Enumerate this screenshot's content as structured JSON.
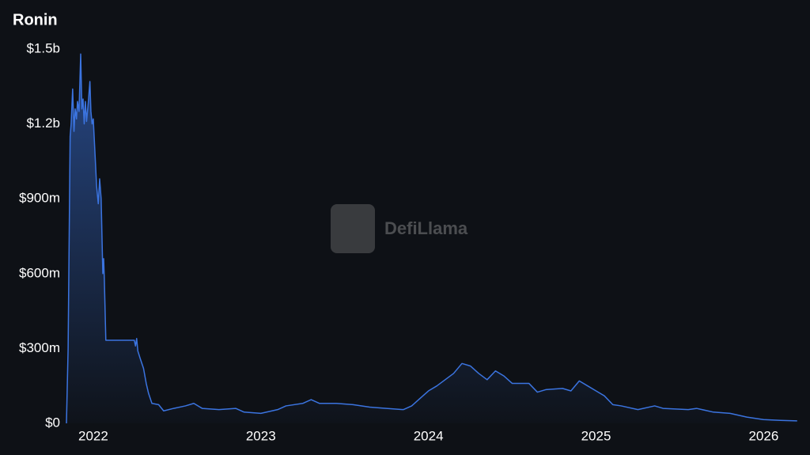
{
  "chart_data": {
    "type": "area",
    "title": "Ronin",
    "watermark": "DefiLlama",
    "color": "#3b74e0",
    "xlim": [
      2021.84,
      2026.22
    ],
    "xticks": [
      2022,
      2023,
      2024,
      2025,
      2026
    ],
    "ylim": [
      0,
      1500000000
    ],
    "yticks": [
      {
        "value": 0,
        "label": "$0"
      },
      {
        "value": 300000000,
        "label": "$300m"
      },
      {
        "value": 600000000,
        "label": "$600m"
      },
      {
        "value": 900000000,
        "label": "$900m"
      },
      {
        "value": 1200000000,
        "label": "$1.2b"
      },
      {
        "value": 1500000000,
        "label": "$1.5b"
      }
    ],
    "grid": false,
    "x": [
      2021.84,
      2021.85,
      2021.862,
      2021.868,
      2021.877,
      2021.885,
      2021.892,
      2021.9,
      2021.906,
      2021.915,
      2021.925,
      2021.932,
      2021.939,
      2021.946,
      2021.953,
      2021.96,
      2021.972,
      2021.98,
      2021.986,
      2021.993,
      2022.0,
      2022.009,
      2022.02,
      2022.03,
      2022.038,
      2022.047,
      2022.057,
      2022.062,
      2022.066,
      2022.075,
      2022.245,
      2022.252,
      2022.259,
      2022.266,
      2022.28,
      2022.3,
      2022.316,
      2022.33,
      2022.35,
      2022.39,
      2022.42,
      2022.48,
      2022.55,
      2022.6,
      2022.65,
      2022.75,
      2022.85,
      2022.9,
      2023.0,
      2023.1,
      2023.15,
      2023.25,
      2023.3,
      2023.35,
      2023.45,
      2023.55,
      2023.65,
      2023.75,
      2023.85,
      2023.9,
      2023.95,
      2024.0,
      2024.05,
      2024.1,
      2024.15,
      2024.2,
      2024.25,
      2024.3,
      2024.35,
      2024.4,
      2024.45,
      2024.5,
      2024.6,
      2024.65,
      2024.7,
      2024.8,
      2024.85,
      2024.9,
      2024.95,
      2025.0,
      2025.05,
      2025.1,
      2025.15,
      2025.25,
      2025.35,
      2025.4,
      2025.55,
      2025.6,
      2025.7,
      2025.8,
      2025.9,
      2026.0,
      2026.1,
      2026.2
    ],
    "values": [
      0,
      300000000,
      1150000000,
      1200000000,
      1340000000,
      1170000000,
      1260000000,
      1220000000,
      1290000000,
      1250000000,
      1480000000,
      1260000000,
      1300000000,
      1200000000,
      1290000000,
      1210000000,
      1300000000,
      1370000000,
      1250000000,
      1200000000,
      1220000000,
      1100000000,
      950000000,
      880000000,
      980000000,
      900000000,
      600000000,
      660000000,
      580000000,
      333000000,
      333000000,
      310000000,
      340000000,
      290000000,
      260000000,
      220000000,
      160000000,
      120000000,
      80000000,
      75000000,
      50000000,
      60000000,
      70000000,
      80000000,
      60000000,
      55000000,
      60000000,
      45000000,
      40000000,
      55000000,
      70000000,
      80000000,
      95000000,
      80000000,
      80000000,
      75000000,
      65000000,
      60000000,
      55000000,
      70000000,
      100000000,
      130000000,
      150000000,
      175000000,
      200000000,
      240000000,
      230000000,
      200000000,
      175000000,
      210000000,
      190000000,
      160000000,
      160000000,
      125000000,
      135000000,
      140000000,
      130000000,
      170000000,
      150000000,
      130000000,
      110000000,
      75000000,
      70000000,
      55000000,
      70000000,
      60000000,
      55000000,
      60000000,
      45000000,
      40000000,
      25000000,
      15000000,
      12000000,
      10000000
    ]
  }
}
